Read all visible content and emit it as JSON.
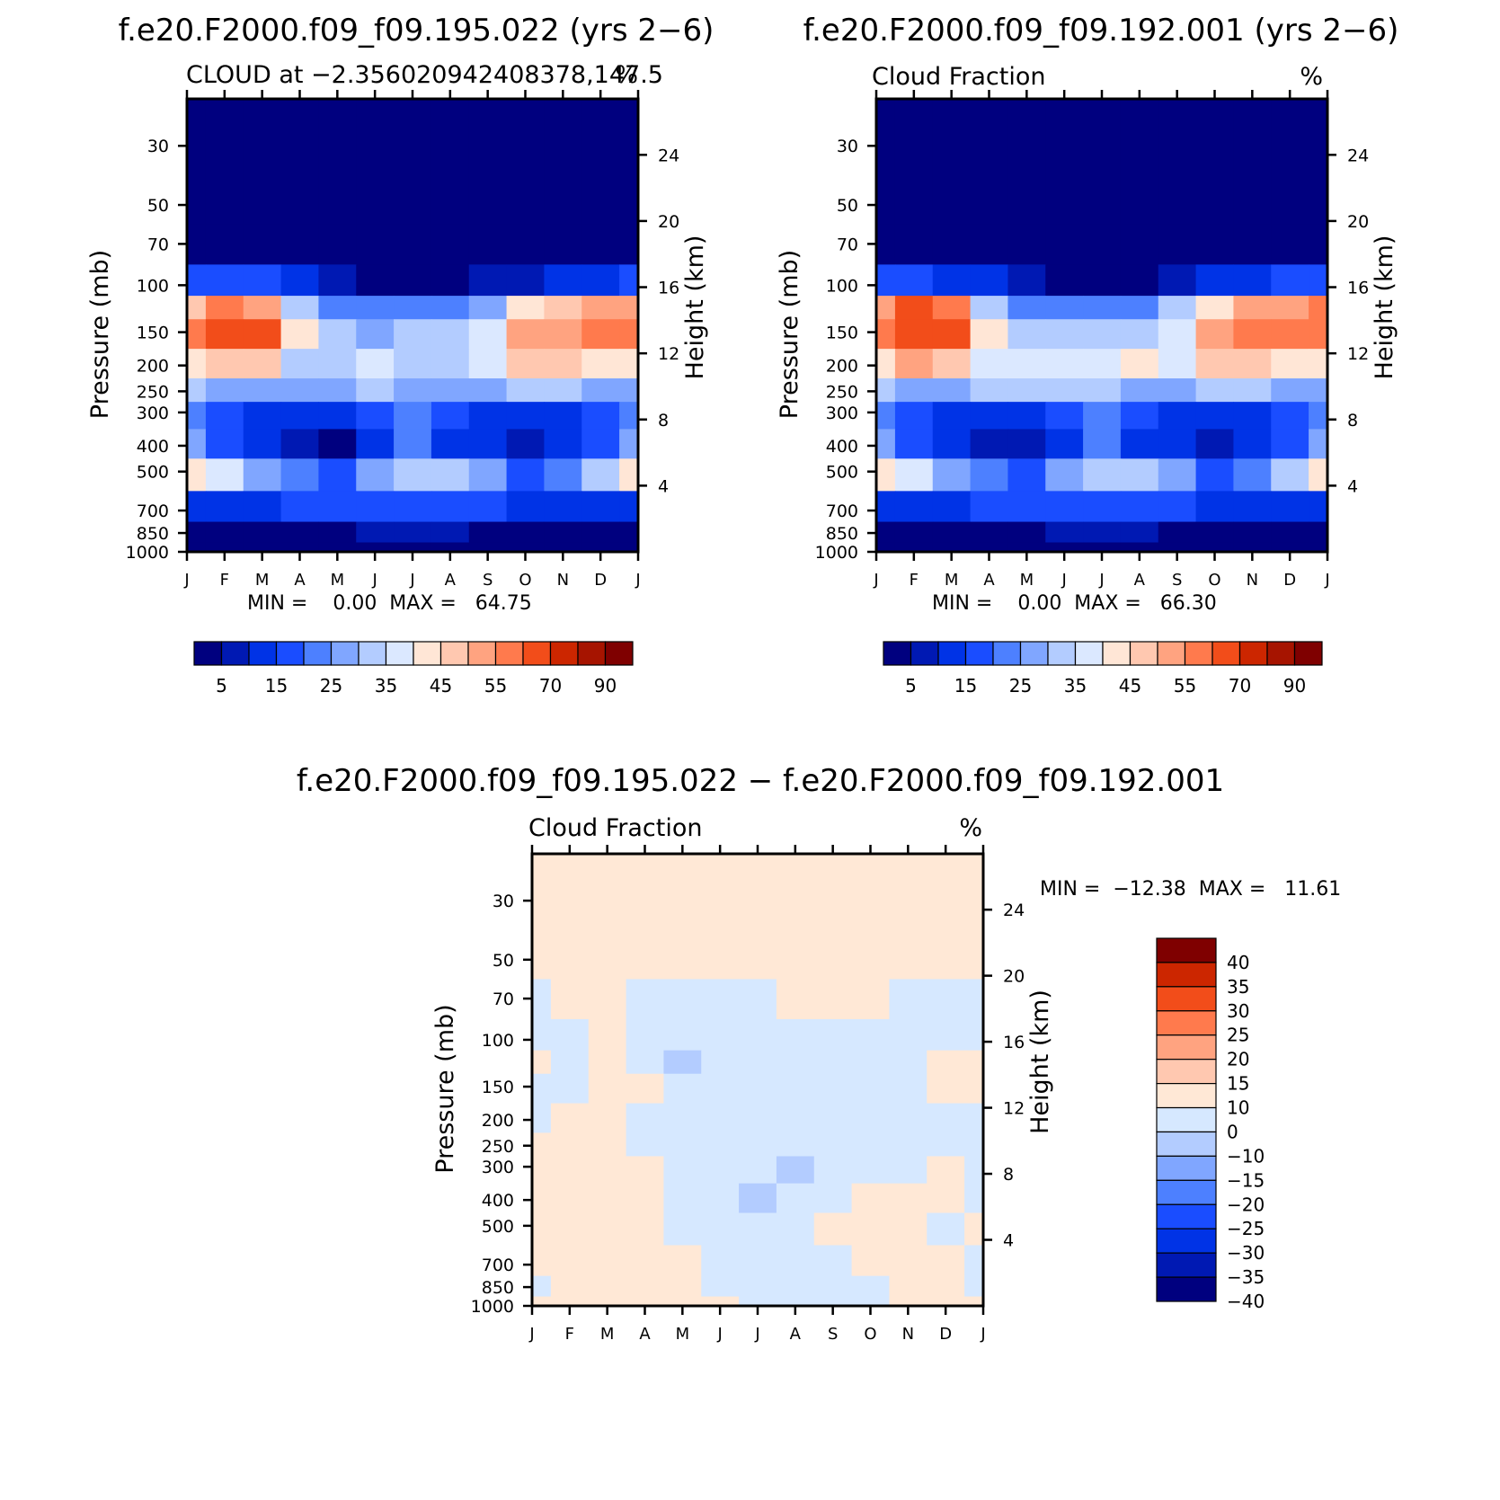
{
  "palettes": {
    "cloud": [
      "#00007f",
      "#0019b3",
      "#0033e6",
      "#1a4dff",
      "#4d80ff",
      "#80a6ff",
      "#b3ccff",
      "#dbe8ff",
      "#ffe6d6",
      "#ffc8b0",
      "#ffa380",
      "#ff7a4d",
      "#f24d1a",
      "#cc2600",
      "#a61400",
      "#7f0000"
    ],
    "diff": [
      "#00007f",
      "#0019b3",
      "#0033e6",
      "#1a4dff",
      "#4d80ff",
      "#80a6ff",
      "#b3ccff",
      "#d6e8ff",
      "#ffe8d6",
      "#ffc8b0",
      "#ffa380",
      "#ff7a4d",
      "#f24d1a",
      "#cc2600",
      "#7f0000"
    ]
  },
  "panels": [
    {
      "id": "top-left",
      "title": "f.e20.F2000.f09_f09.195.022 (yrs 2−6)",
      "subtitle_left": "CLOUD at −2.356020942408378,147.5",
      "subtitle_right": "%",
      "minmax": "MIN =    0.00  MAX =   64.75",
      "chart_data": {
        "type": "heatmap",
        "x": [
          "J",
          "F",
          "M",
          "A",
          "M",
          "J",
          "J",
          "A",
          "S",
          "O",
          "N",
          "D",
          "J"
        ],
        "y_pressure_mb": [
          30,
          50,
          70,
          100,
          150,
          200,
          250,
          300,
          400,
          500,
          700,
          850,
          1000
        ],
        "y_height_km": [
          24,
          20,
          16,
          12,
          8,
          4
        ],
        "xlabel": "",
        "ylabel": "Pressure (mb)",
        "ylabel_right": "Height (km)",
        "z_levels": [
          30,
          50,
          70,
          100,
          120,
          150,
          200,
          250,
          300,
          400,
          500,
          700,
          850,
          1000
        ],
        "values": [
          [
            0,
            0,
            0,
            0,
            0,
            0,
            0,
            0,
            0,
            0,
            0,
            0,
            0
          ],
          [
            0,
            0,
            0,
            0,
            0,
            0,
            0,
            0,
            0,
            0,
            0,
            0,
            0
          ],
          [
            0,
            0,
            0,
            0,
            0,
            0,
            0,
            0,
            0,
            0,
            0,
            0,
            0
          ],
          [
            18,
            15,
            15,
            12,
            6,
            3,
            4,
            3,
            5,
            9,
            13,
            14,
            18
          ],
          [
            48,
            56,
            52,
            30,
            24,
            20,
            22,
            22,
            28,
            42,
            48,
            52,
            54
          ],
          [
            56,
            64,
            62,
            40,
            30,
            28,
            30,
            30,
            36,
            50,
            54,
            58,
            58
          ],
          [
            44,
            48,
            46,
            34,
            34,
            38,
            34,
            32,
            36,
            46,
            46,
            44,
            44
          ],
          [
            30,
            28,
            26,
            28,
            28,
            32,
            28,
            26,
            26,
            30,
            30,
            28,
            28
          ],
          [
            24,
            18,
            14,
            10,
            10,
            16,
            22,
            16,
            12,
            10,
            12,
            18,
            24
          ],
          [
            26,
            18,
            12,
            8,
            4,
            14,
            20,
            14,
            10,
            8,
            12,
            18,
            26
          ],
          [
            42,
            36,
            28,
            22,
            18,
            26,
            30,
            30,
            26,
            18,
            22,
            30,
            40
          ],
          [
            12,
            12,
            14,
            16,
            16,
            18,
            18,
            18,
            16,
            14,
            12,
            12,
            12
          ],
          [
            4,
            3,
            2,
            2,
            3,
            6,
            6,
            6,
            4,
            2,
            2,
            3,
            4
          ],
          [
            3,
            2,
            2,
            2,
            2,
            2,
            2,
            2,
            2,
            2,
            2,
            2,
            3
          ]
        ]
      },
      "colorbar": {
        "labels": [
          "5",
          "15",
          "25",
          "35",
          "45",
          "55",
          "70",
          "90"
        ]
      }
    },
    {
      "id": "top-right",
      "title": "f.e20.F2000.f09_f09.192.001 (yrs 2−6)",
      "subtitle_left": "Cloud Fraction",
      "subtitle_right": "%",
      "minmax": "MIN =    0.00  MAX =   66.30",
      "chart_data": {
        "type": "heatmap",
        "x": [
          "J",
          "F",
          "M",
          "A",
          "M",
          "J",
          "J",
          "A",
          "S",
          "O",
          "N",
          "D",
          "J"
        ],
        "y_pressure_mb": [
          30,
          50,
          70,
          100,
          150,
          200,
          250,
          300,
          400,
          500,
          700,
          850,
          1000
        ],
        "y_height_km": [
          24,
          20,
          16,
          12,
          8,
          4
        ],
        "xlabel": "",
        "ylabel": "Pressure (mb)",
        "ylabel_right": "Height (km)",
        "z_levels": [
          30,
          50,
          70,
          100,
          120,
          150,
          200,
          250,
          300,
          400,
          500,
          700,
          850,
          1000
        ],
        "values": [
          [
            0,
            0,
            0,
            0,
            0,
            0,
            0,
            0,
            0,
            0,
            0,
            0,
            0
          ],
          [
            0,
            0,
            0,
            0,
            0,
            0,
            0,
            0,
            0,
            0,
            0,
            0,
            0
          ],
          [
            0,
            0,
            0,
            0,
            0,
            0,
            0,
            0,
            0,
            0,
            0,
            0,
            0
          ],
          [
            18,
            16,
            14,
            11,
            6,
            3,
            4,
            4,
            6,
            10,
            14,
            16,
            18
          ],
          [
            50,
            60,
            56,
            34,
            24,
            20,
            22,
            22,
            30,
            44,
            50,
            54,
            56
          ],
          [
            58,
            66,
            64,
            44,
            32,
            30,
            32,
            34,
            38,
            50,
            56,
            58,
            58
          ],
          [
            44,
            50,
            48,
            38,
            36,
            38,
            36,
            40,
            38,
            46,
            46,
            44,
            44
          ],
          [
            30,
            28,
            26,
            30,
            30,
            34,
            30,
            28,
            26,
            30,
            30,
            28,
            28
          ],
          [
            24,
            18,
            14,
            10,
            10,
            16,
            22,
            16,
            12,
            10,
            12,
            18,
            24
          ],
          [
            26,
            18,
            12,
            8,
            6,
            14,
            20,
            14,
            10,
            8,
            12,
            18,
            26
          ],
          [
            42,
            36,
            28,
            22,
            18,
            26,
            30,
            30,
            26,
            18,
            22,
            30,
            40
          ],
          [
            12,
            12,
            14,
            16,
            16,
            18,
            16,
            16,
            16,
            14,
            12,
            12,
            12
          ],
          [
            4,
            3,
            2,
            2,
            3,
            6,
            6,
            6,
            4,
            2,
            2,
            3,
            4
          ],
          [
            3,
            2,
            2,
            2,
            2,
            2,
            2,
            2,
            2,
            2,
            2,
            2,
            3
          ]
        ]
      },
      "colorbar": {
        "labels": [
          "5",
          "15",
          "25",
          "35",
          "45",
          "55",
          "70",
          "90"
        ]
      }
    },
    {
      "id": "bottom",
      "title": "f.e20.F2000.f09_f09.195.022 − f.e20.F2000.f09_f09.192.001",
      "subtitle_left": "Cloud Fraction",
      "subtitle_right": "%",
      "minmax": "MIN =  −12.38  MAX =   11.61",
      "chart_data": {
        "type": "heatmap",
        "x": [
          "J",
          "F",
          "M",
          "A",
          "M",
          "J",
          "J",
          "A",
          "S",
          "O",
          "N",
          "D",
          "J"
        ],
        "y_pressure_mb": [
          30,
          50,
          70,
          100,
          150,
          200,
          250,
          300,
          400,
          500,
          700,
          850,
          1000
        ],
        "y_height_km": [
          24,
          20,
          16,
          12,
          8,
          4
        ],
        "xlabel": "",
        "ylabel": "Pressure (mb)",
        "ylabel_right": "Height (km)",
        "z_levels": [
          30,
          50,
          70,
          100,
          120,
          150,
          200,
          250,
          300,
          400,
          500,
          700,
          850,
          1000
        ],
        "values": [
          [
            1,
            1,
            1,
            1,
            1,
            1,
            1,
            1,
            1,
            1,
            1,
            1,
            1
          ],
          [
            1,
            1,
            1,
            1,
            1,
            1,
            1,
            1,
            1,
            1,
            1,
            1,
            1
          ],
          [
            -1,
            1,
            1,
            -1,
            -1,
            -1,
            -1,
            1,
            1,
            1,
            -1,
            -1,
            -1
          ],
          [
            -1,
            -1,
            1,
            -1,
            -1,
            -1,
            -1,
            -1,
            -1,
            -1,
            -1,
            -1,
            -1
          ],
          [
            1,
            -1,
            1,
            -1,
            -11,
            -1,
            -1,
            -1,
            -1,
            -1,
            -1,
            1,
            1
          ],
          [
            -1,
            -1,
            1,
            2,
            -1,
            -1,
            -1,
            -1,
            -1,
            -1,
            -1,
            1,
            1
          ],
          [
            -1,
            1,
            1,
            -1,
            -1,
            -1,
            -1,
            -1,
            -1,
            -1,
            -1,
            -1,
            -1
          ],
          [
            1,
            1,
            1,
            -1,
            -1,
            -1,
            -1,
            -1,
            -1,
            -1,
            -1,
            -1,
            -1
          ],
          [
            1,
            1,
            1,
            1,
            -1,
            -1,
            -1,
            -11,
            -1,
            -1,
            -1,
            1,
            -1
          ],
          [
            1,
            1,
            2,
            1,
            -1,
            -1,
            -11,
            -1,
            -1,
            1,
            1,
            1,
            -1
          ],
          [
            1,
            1,
            1,
            1,
            -1,
            -1,
            -1,
            -1,
            1,
            1,
            1,
            -1,
            1
          ],
          [
            1,
            1,
            1,
            1,
            1,
            -1,
            -1,
            -1,
            -1,
            1,
            1,
            1,
            -1
          ],
          [
            -1,
            1,
            1,
            1,
            1,
            -1,
            -1,
            -1,
            -1,
            -1,
            1,
            1,
            -1
          ],
          [
            1,
            1,
            1,
            1,
            1,
            1,
            -1,
            -1,
            -1,
            -1,
            1,
            1,
            1
          ]
        ]
      },
      "colorbar": {
        "labels": [
          "40",
          "35",
          "30",
          "25",
          "20",
          "15",
          "10",
          "0",
          "−10",
          "−15",
          "−20",
          "−25",
          "−30",
          "−35",
          "−40"
        ]
      }
    }
  ]
}
